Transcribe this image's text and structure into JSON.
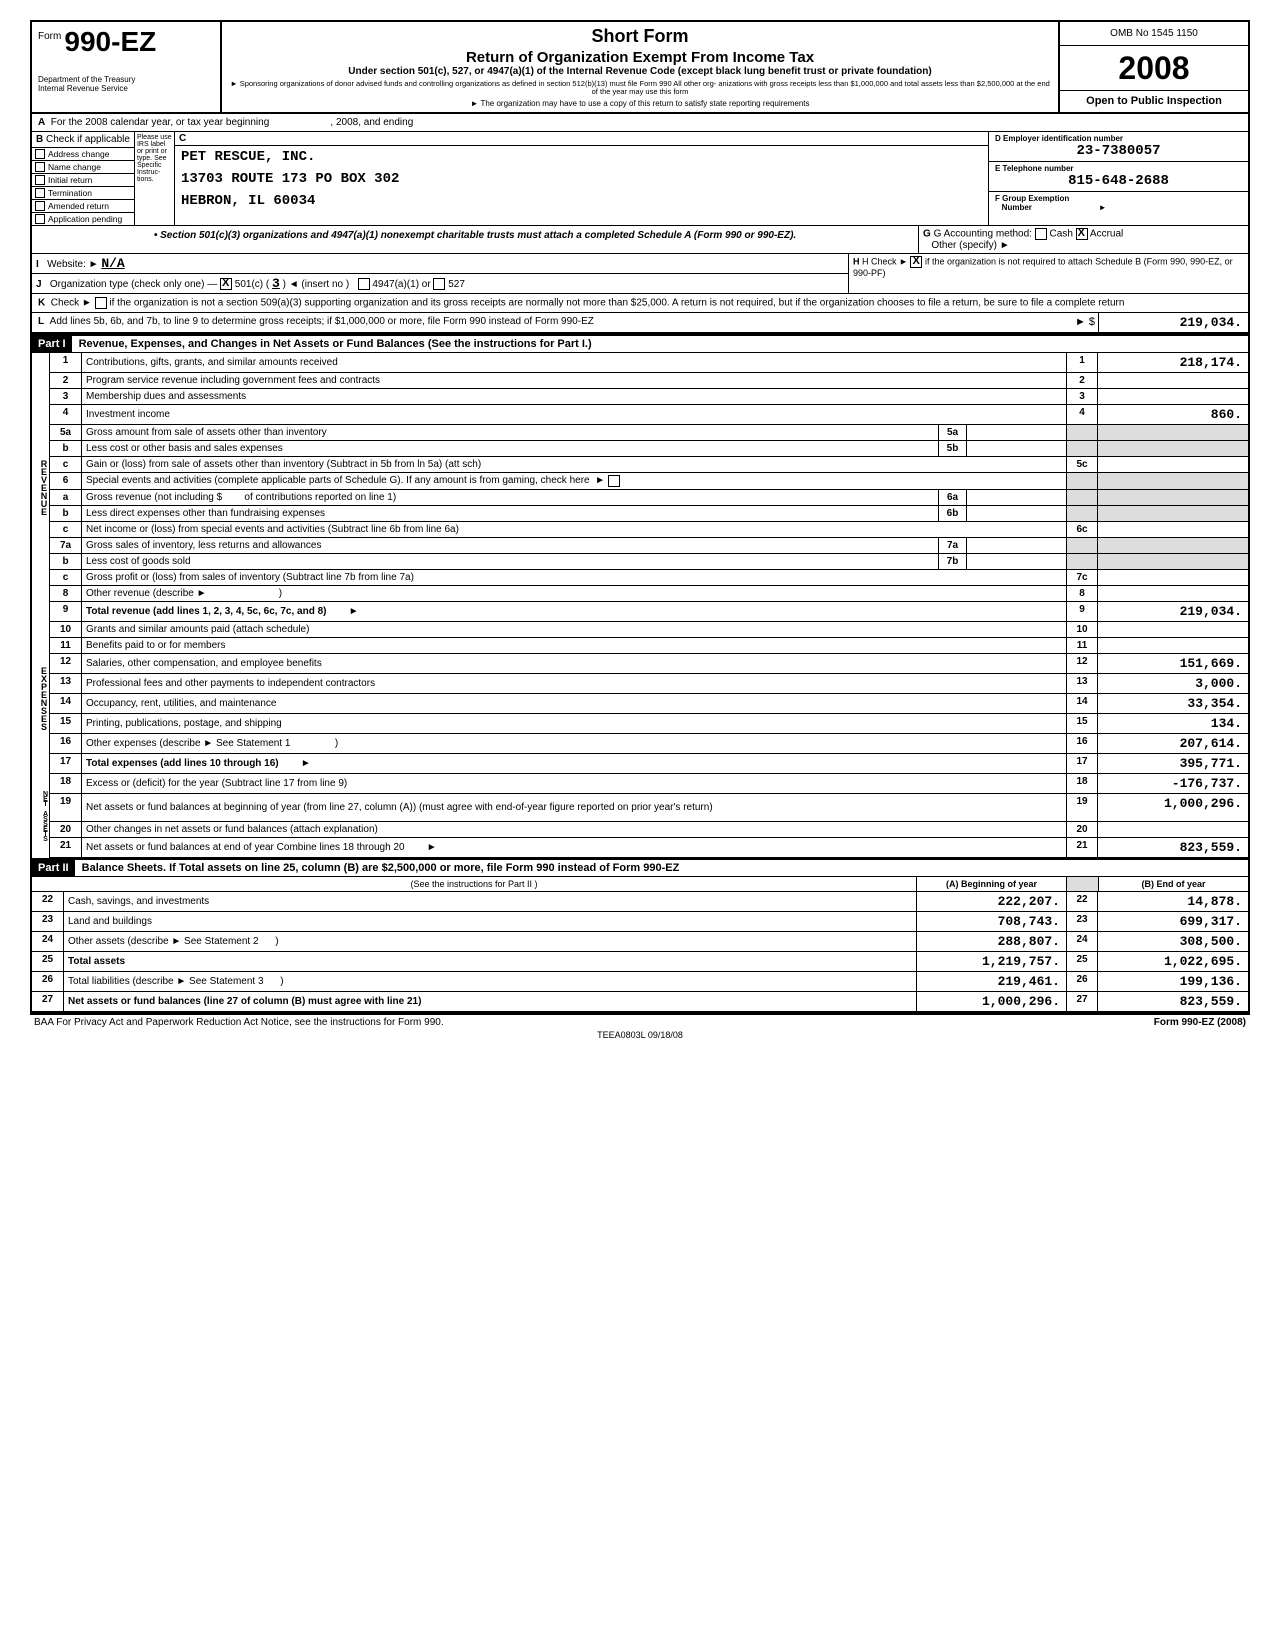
{
  "meta": {
    "omb": "OMB No 1545 1150",
    "year": "2008",
    "open": "Open to Public Inspection",
    "form_prefix": "Form",
    "form_num": "990-EZ",
    "short_form": "Short Form",
    "return_title": "Return of Organization Exempt From Income Tax",
    "subtitle": "Under section 501(c), 527, or 4947(a)(1) of the Internal Revenue Code (except black lung benefit trust or private foundation)",
    "sponsor_note": "► Sponsoring organizations of donor advised funds and controlling organizations as defined in section 512(b)(13) must file Form 990 All other org- anizations with gross receipts less than $1,000,000 and total assets less than $2,500,000 at the end of the year may use this form",
    "copy_note": "► The organization may have to use a copy of this return to satisfy state reporting requirements",
    "dept1": "Department of the Treasury",
    "dept2": "Internal Revenue Service"
  },
  "header": {
    "A_text": "For the 2008 calendar year, or tax year beginning",
    "A_mid": ", 2008, and ending",
    "B_text": "Check if applicable",
    "checks": [
      "Address change",
      "Name change",
      "Initial return",
      "Termination",
      "Amended return",
      "Application pending"
    ],
    "please": "Please use IRS label or print or type. See Specific Instruc- tions.",
    "C": "C",
    "org_name": "PET RESCUE, INC.",
    "org_addr1": "13703 ROUTE 173 PO BOX 302",
    "org_addr2": "HEBRON, IL 60034",
    "D_label": "D Employer identification number",
    "D_val": "23-7380057",
    "E_label": "E Telephone number",
    "E_val": "815-648-2688",
    "F_label": "F Group Exemption Number",
    "section_note": "• Section 501(c)(3) organizations and 4947(a)(1) nonexempt charitable trusts must attach a completed Schedule A (Form 990 or 990-EZ).",
    "G_label": "G Accounting method:",
    "G_other": "Other (specify) ►",
    "G_cash": "Cash",
    "G_accrual": "Accrual",
    "H_label": "H Check ►",
    "H_text": "if the organization is not required to attach Schedule B (Form 990, 990-EZ, or 990-PF)",
    "I_label": "Website: ►",
    "I_val": "N/A",
    "J_label": "Organization type (check only one) —",
    "J_501c": "501(c)",
    "J_num": "3",
    "J_insert": "◄ (insert no )",
    "J_4947": "4947(a)(1) or",
    "J_527": "527",
    "K_label": "Check ►",
    "K_text": "if the organization is not a section 509(a)(3) supporting organization and its gross receipts are normally not more than $25,000. A return is not required, but if the organization chooses to file a return, be sure to file a complete return",
    "L_text": "Add lines 5b, 6b, and 7b, to line 9 to determine gross receipts; if $1,000,000 or more, file Form 990 instead of Form 990-EZ",
    "L_arrow": "► $",
    "L_val": "219,034."
  },
  "part1": {
    "header": "Part I",
    "title": "Revenue, Expenses, and Changes in Net Assets or Fund Balances (See the instructions for Part I.)",
    "lines": {
      "1": {
        "desc": "Contributions, gifts, grants, and similar amounts received",
        "amt": "218,174."
      },
      "2": {
        "desc": "Program service revenue including government fees and contracts",
        "amt": ""
      },
      "3": {
        "desc": "Membership dues and assessments",
        "amt": ""
      },
      "4": {
        "desc": "Investment income",
        "amt": "860."
      },
      "5a": {
        "desc": "Gross amount from sale of assets other than inventory"
      },
      "5b": {
        "desc": "Less cost or other basis and sales expenses"
      },
      "5c": {
        "desc": "Gain or (loss) from sale of assets other than inventory (Subtract in 5b from ln 5a) (att sch)",
        "amt": ""
      },
      "6": {
        "desc": "Special events and activities (complete applicable parts of Schedule G). If any amount is from gaming, check here"
      },
      "6a": {
        "desc": "Gross revenue (not including $",
        "desc2": "of contributions reported on line 1)"
      },
      "6b": {
        "desc": "Less direct expenses other than fundraising expenses"
      },
      "6c": {
        "desc": "Net income or (loss) from special events and activities (Subtract line 6b from line 6a)",
        "amt": ""
      },
      "7a": {
        "desc": "Gross sales of inventory, less returns and allowances"
      },
      "7b": {
        "desc": "Less cost of goods sold"
      },
      "7c": {
        "desc": "Gross profit or (loss) from sales of inventory (Subtract line 7b from line 7a)",
        "amt": ""
      },
      "8": {
        "desc": "Other revenue (describe ►",
        "amt": ""
      },
      "9": {
        "desc": "Total revenue (add lines 1, 2, 3, 4, 5c, 6c, 7c, and 8)",
        "amt": "219,034."
      },
      "10": {
        "desc": "Grants and similar amounts paid (attach schedule)",
        "amt": ""
      },
      "11": {
        "desc": "Benefits paid to or for members",
        "amt": ""
      },
      "12": {
        "desc": "Salaries, other compensation, and employee benefits",
        "amt": "151,669."
      },
      "13": {
        "desc": "Professional fees and other payments to independent contractors",
        "amt": "3,000."
      },
      "14": {
        "desc": "Occupancy, rent, utilities, and maintenance",
        "amt": "33,354."
      },
      "15": {
        "desc": "Printing, publications, postage, and shipping",
        "amt": "134."
      },
      "16": {
        "desc": "Other expenses (describe ► See Statement 1",
        "amt": "207,614."
      },
      "17": {
        "desc": "Total expenses (add lines 10 through 16)",
        "amt": "395,771."
      },
      "18": {
        "desc": "Excess or (deficit) for the year (Subtract line 17 from line 9)",
        "amt": "-176,737."
      },
      "19": {
        "desc": "Net assets or fund balances at beginning of year (from line 27, column (A)) (must agree with end-of-year figure reported on prior year's return)",
        "amt": "1,000,296."
      },
      "20": {
        "desc": "Other changes in net assets or fund balances (attach explanation)",
        "amt": ""
      },
      "21": {
        "desc": "Net assets or fund balances at end of year Combine lines 18 through 20",
        "amt": "823,559."
      }
    },
    "vlabels": {
      "rev": "REVENUE",
      "exp": "EXPENSES",
      "net": "NET ASSETS"
    }
  },
  "part2": {
    "header": "Part II",
    "title": "Balance Sheets. If Total assets on line 25, column (B) are $2,500,000 or more, file Form 990 instead of Form 990-EZ",
    "instr": "(See the instructions for Part II )",
    "colA": "(A) Beginning of year",
    "colB": "(B) End of year",
    "rows": [
      {
        "n": "22",
        "desc": "Cash, savings, and investments",
        "a": "222,207.",
        "b": "14,878."
      },
      {
        "n": "23",
        "desc": "Land and buildings",
        "a": "708,743.",
        "b": "699,317."
      },
      {
        "n": "24",
        "desc": "Other assets (describe ► See Statement 2",
        "a": "288,807.",
        "b": "308,500."
      },
      {
        "n": "25",
        "desc": "Total assets",
        "a": "1,219,757.",
        "b": "1,022,695."
      },
      {
        "n": "26",
        "desc": "Total liabilities (describe ► See Statement 3",
        "a": "219,461.",
        "b": "199,136."
      },
      {
        "n": "27",
        "desc": "Net assets or fund balances (line 27 of column (B) must agree with line 21)",
        "a": "1,000,296.",
        "b": "823,559."
      }
    ]
  },
  "footer": {
    "left": "BAA For Privacy Act and Paperwork Reduction Act Notice, see the instructions for Form 990.",
    "mid": "TEEA0803L 09/18/08",
    "right": "Form 990-EZ (2008)"
  }
}
